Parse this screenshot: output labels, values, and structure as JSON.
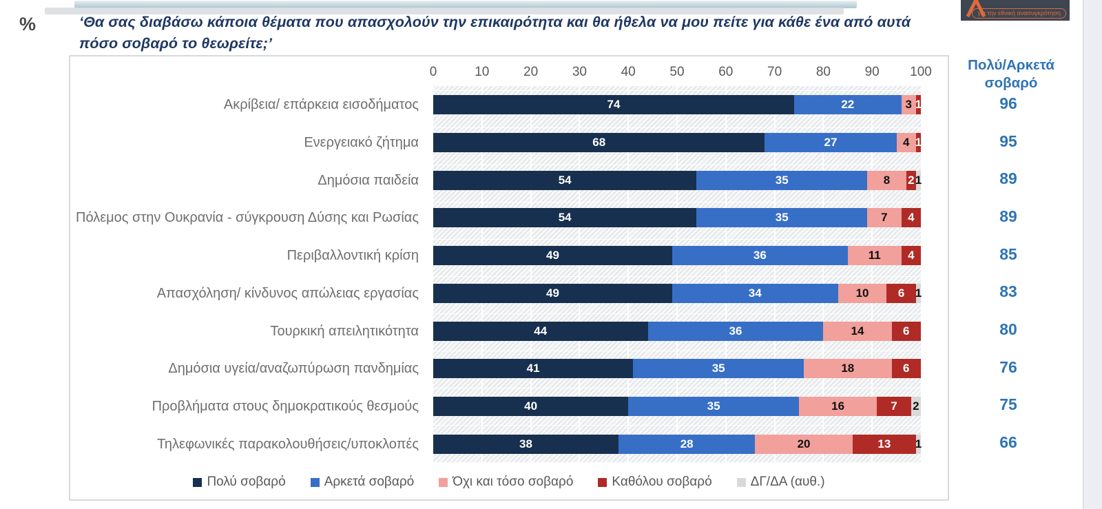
{
  "page": {
    "percent_symbol": "%",
    "title": "‘Θα σας διαβάσω κάποια θέματα που απασχολούν την επικαιρότητα και θα ήθελα να μου πείτε για κάθε ένα από αυτά πόσο σοβαρό το θεωρείτε;’"
  },
  "logo": {
    "banner_text": "για την εθνική ανασυγκρότηση",
    "background_color": "#3d4651",
    "accent_color": "#e0693c"
  },
  "chart_data": {
    "type": "bar",
    "stacked": true,
    "orientation": "horizontal",
    "title": "‘Θα σας διαβάσω κάποια θέματα που απασχολούν την επικαιρότητα και θα ήθελα να μου πείτε για κάθε ένα από αυτά πόσο σοβαρό το θεωρείτε;’",
    "unit": "%",
    "xlim": [
      0,
      100
    ],
    "x_ticks": [
      0,
      10,
      20,
      30,
      40,
      50,
      60,
      70,
      80,
      90,
      100
    ],
    "grid": true,
    "legend_position": "bottom",
    "categories": [
      "Ακρίβεια/ επάρκεια εισοδήματος",
      "Ενεργειακό ζήτημα",
      "Δημόσια παιδεία",
      "Πόλεμος στην Ουκρανία - σύγκρουση Δύσης και Ρωσίας",
      "Περιβαλλοντική κρίση",
      "Απασχόληση/ κίνδυνος απώλειας εργασίας",
      "Τουρκική απειλητικότητα",
      "Δημόσια υγεία/αναζωπύρωση πανδημίας",
      "Προβλήματα στους δημοκρατικούς θεσμούς",
      "Τηλεφωνικές παρακολουθήσεις/υποκλοπές"
    ],
    "series": [
      {
        "name": "Πολύ σοβαρό",
        "color": "#17304f",
        "values": [
          74,
          68,
          54,
          54,
          49,
          49,
          44,
          41,
          40,
          38
        ]
      },
      {
        "name": "Αρκετά σοβαρό",
        "color": "#376fc7",
        "values": [
          22,
          27,
          35,
          35,
          36,
          34,
          36,
          35,
          35,
          28
        ]
      },
      {
        "name": "Όχι και τόσο σοβαρό",
        "color": "#f1a09b",
        "values": [
          3,
          4,
          8,
          7,
          11,
          10,
          14,
          18,
          16,
          20
        ]
      },
      {
        "name": "Καθόλου σοβαρό",
        "color": "#b02b26",
        "values": [
          1,
          1,
          2,
          4,
          4,
          6,
          6,
          6,
          7,
          13
        ]
      },
      {
        "name": "ΔΓ/ΔΑ (αυθ.)",
        "color": "#d9d9d9",
        "values": [
          0,
          0,
          1,
          0,
          0,
          1,
          0,
          0,
          2,
          1
        ]
      }
    ],
    "totals_column": {
      "header": "Πολύ/Αρκετά σοβαρό",
      "values": [
        96,
        95,
        89,
        89,
        85,
        83,
        80,
        76,
        75,
        66
      ],
      "color": "#2e74b5"
    }
  }
}
